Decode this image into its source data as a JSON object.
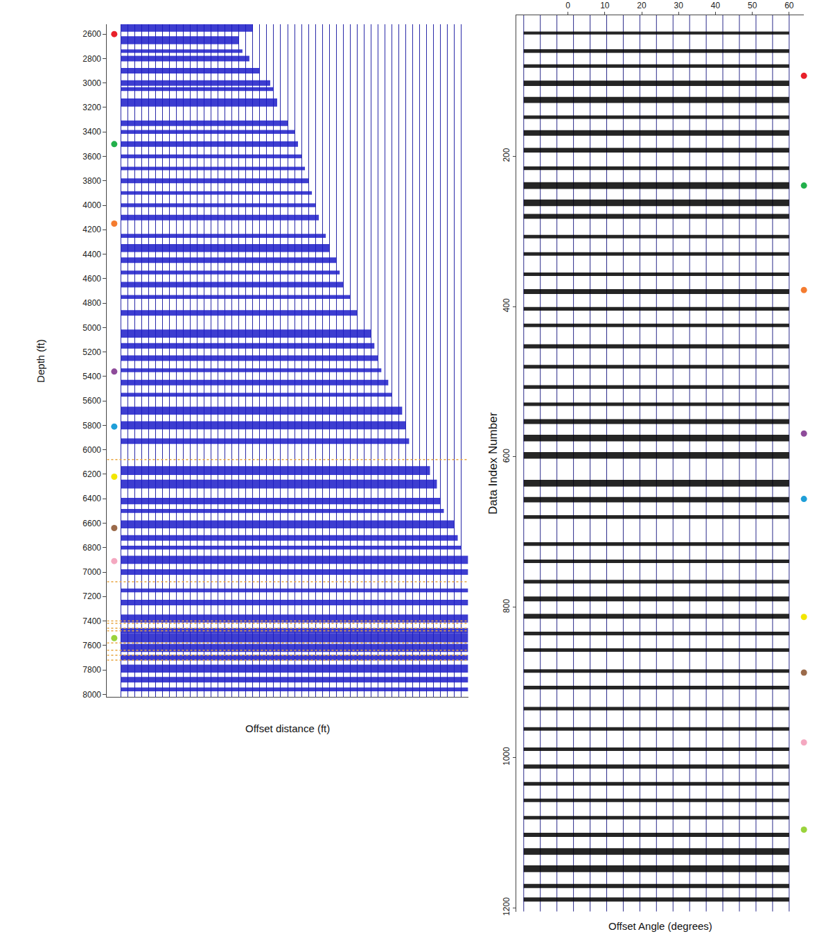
{
  "chart_data": [
    {
      "type": "gather",
      "x_label": "Offset distance (ft)",
      "y_label": "Depth (ft)",
      "xlim": [
        -4,
        100
      ],
      "xticks": [
        0,
        2,
        4,
        6,
        8,
        10,
        12,
        14,
        16,
        18,
        20,
        22,
        24,
        26,
        28,
        30,
        32,
        34,
        36,
        38,
        40,
        42,
        44,
        46,
        48,
        50,
        52,
        54,
        56,
        58,
        60,
        62,
        64,
        66,
        68,
        70,
        72,
        74,
        76,
        78,
        80,
        82,
        84,
        86,
        88,
        90,
        92,
        94,
        96,
        98,
        100
      ],
      "ylim": [
        2520,
        8020
      ],
      "yticks": [
        2600,
        2800,
        3000,
        3200,
        3400,
        3600,
        3800,
        4000,
        4200,
        4400,
        4600,
        4800,
        5000,
        5200,
        5400,
        5600,
        5800,
        6000,
        6200,
        6400,
        6600,
        6800,
        7000,
        7200,
        7400,
        7600,
        7800,
        8000
      ],
      "tick_labels": "y",
      "grid": true,
      "color": "#1c1cc8",
      "events": {
        "positions": [
          2545,
          2650,
          2740,
          2800,
          2900,
          3000,
          3050,
          3160,
          3330,
          3400,
          3500,
          3600,
          3700,
          3800,
          3900,
          4000,
          4100,
          4250,
          4350,
          4450,
          4550,
          4650,
          4750,
          4880,
          5050,
          5150,
          5250,
          5350,
          5450,
          5550,
          5680,
          5800,
          5930,
          6170,
          6280,
          6420,
          6500,
          6610,
          6720,
          6800,
          6900,
          7000,
          7150,
          7250,
          7380,
          7480,
          7540,
          7620,
          7700,
          7790,
          7880,
          7960
        ],
        "amplitudes": [
          0.9,
          0.8,
          0.25,
          0.5,
          0.5,
          0.5,
          0.3,
          0.8,
          0.5,
          0.3,
          0.5,
          0.3,
          0.25,
          0.4,
          0.25,
          0.3,
          0.5,
          0.3,
          0.8,
          0.5,
          0.3,
          0.5,
          0.3,
          0.5,
          0.8,
          0.5,
          0.5,
          0.3,
          0.5,
          0.3,
          0.8,
          0.8,
          0.5,
          0.9,
          0.9,
          0.6,
          0.3,
          0.8,
          0.5,
          0.3,
          0.8,
          0.5,
          0.3,
          0.5,
          0.8,
          0.5,
          0.9,
          0.8,
          0.5,
          0.8,
          0.5,
          0.3
        ],
        "max_offsets": [
          38,
          34,
          35,
          37,
          40,
          43,
          44,
          45,
          48,
          50,
          51,
          52,
          53,
          54,
          55,
          56,
          57,
          59,
          60,
          62,
          63,
          64,
          66,
          68,
          72,
          73,
          74,
          75,
          77,
          78,
          81,
          82,
          83,
          89,
          91,
          92,
          93,
          96,
          97,
          98,
          100,
          100,
          100,
          100,
          100,
          100,
          100,
          100,
          100,
          100,
          100,
          100
        ]
      },
      "horizons": {
        "positions": [
          6080,
          7080,
          7400,
          7420,
          7460,
          7480,
          7580,
          7640,
          7680,
          7720
        ],
        "color": "#e8a33d",
        "line_style": "dot"
      },
      "markers": {
        "positions": [
          2600,
          3500,
          4150,
          5360,
          5810,
          6220,
          6640,
          6910,
          7540
        ],
        "colors": [
          "#e8202a",
          "#22b04b",
          "#f47c30",
          "#8e4b9a",
          "#1f9fd8",
          "#f2e600",
          "#9b6a4a",
          "#f4a8c0",
          "#9ad33c"
        ]
      }
    },
    {
      "type": "gather",
      "x_label": "Offset Angle (degrees)",
      "y_label": "Data Index Number",
      "xlim": [
        -14,
        64
      ],
      "xticks": [
        0,
        10,
        20,
        30,
        40,
        50,
        60
      ],
      "ylim": [
        12,
        1205
      ],
      "yticks": [
        200,
        400,
        600,
        800,
        1000,
        1200
      ],
      "grid": false,
      "color": "#000000",
      "traces": {
        "positions": [
          -12,
          -7.5,
          -3,
          1.5,
          6,
          10.5,
          15,
          19.5,
          24,
          28.5,
          33,
          37.5,
          42,
          46.5,
          51,
          55.5,
          60
        ],
        "color": "#2a2a8a"
      },
      "events": {
        "positions": [
          36,
          60,
          80,
          103,
          125,
          148,
          169,
          192,
          216,
          239,
          262,
          280,
          307,
          330,
          357,
          380,
          403,
          425,
          453,
          480,
          507,
          530,
          553,
          575,
          598,
          635,
          657,
          680,
          716,
          739,
          766,
          789,
          812,
          835,
          857,
          885,
          907,
          935,
          962,
          989,
          1012,
          1035,
          1057,
          1080,
          1103,
          1125,
          1148,
          1171,
          1189
        ],
        "amplitudes": [
          0.3,
          0.4,
          0.4,
          0.7,
          0.8,
          0.4,
          0.7,
          0.6,
          0.4,
          0.9,
          0.9,
          0.6,
          0.4,
          0.4,
          0.4,
          0.6,
          0.4,
          0.4,
          0.5,
          0.4,
          0.4,
          0.4,
          0.6,
          0.9,
          0.9,
          0.9,
          0.7,
          0.4,
          0.4,
          0.4,
          0.4,
          0.6,
          0.6,
          0.4,
          0.4,
          0.4,
          0.4,
          0.4,
          0.4,
          0.4,
          0.5,
          0.4,
          0.4,
          0.4,
          0.5,
          0.9,
          0.9,
          0.5,
          0.5
        ]
      },
      "markers": {
        "positions": [
          93,
          239,
          378,
          569,
          656,
          813,
          887,
          980,
          1096
        ],
        "colors": [
          "#e8202a",
          "#22b04b",
          "#f47c30",
          "#8e4b9a",
          "#1f9fd8",
          "#f2e600",
          "#9b6a4a",
          "#f4a8c0",
          "#9ad33c"
        ]
      }
    }
  ]
}
